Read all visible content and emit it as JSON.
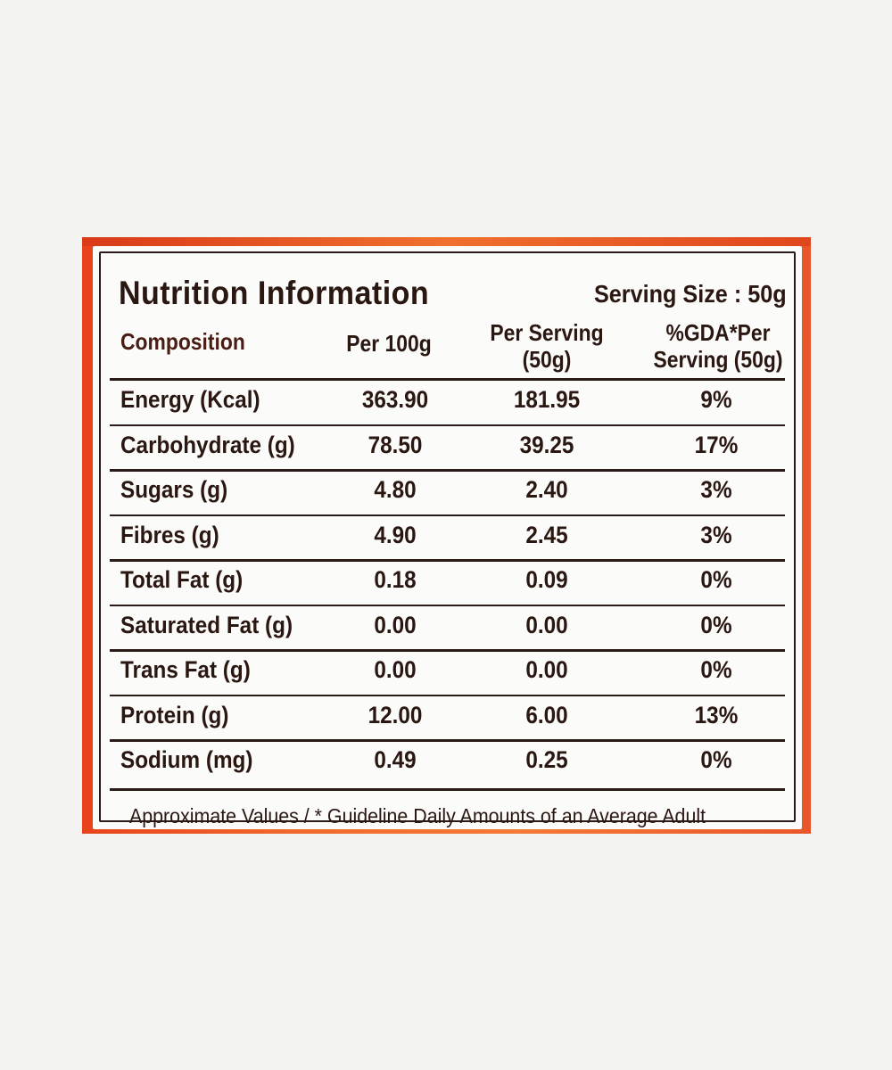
{
  "label": {
    "title": "Nutrition Information",
    "serving_size": "Serving Size : 50g",
    "headers": {
      "composition": "Composition",
      "per_100g": "Per 100g",
      "per_serving": [
        "Per Serving",
        "(50g)"
      ],
      "gda": [
        "%GDA*Per",
        "Serving (50g)"
      ]
    },
    "rows": [
      {
        "name": "Energy (Kcal)",
        "per_100g": "363.90",
        "per_serving": "181.95",
        "gda": "9%"
      },
      {
        "name": "Carbohydrate (g)",
        "per_100g": "78.50",
        "per_serving": "39.25",
        "gda": "17%"
      },
      {
        "name": "Sugars (g)",
        "per_100g": "4.80",
        "per_serving": "2.40",
        "gda": "3%"
      },
      {
        "name": "Fibres (g)",
        "per_100g": "4.90",
        "per_serving": "2.45",
        "gda": "3%"
      },
      {
        "name": "Total Fat (g)",
        "per_100g": "0.18",
        "per_serving": "0.09",
        "gda": "0%"
      },
      {
        "name": "Saturated Fat (g)",
        "per_100g": "0.00",
        "per_serving": "0.00",
        "gda": "0%"
      },
      {
        "name": "Trans Fat (g)",
        "per_100g": "0.00",
        "per_serving": "0.00",
        "gda": "0%"
      },
      {
        "name": "Protein (g)",
        "per_100g": "12.00",
        "per_serving": "6.00",
        "gda": "13%"
      },
      {
        "name": "Sodium (mg)",
        "per_100g": "0.49",
        "per_serving": "0.25",
        "gda": "0%"
      }
    ],
    "footnote": "Approximate Values / * Guideline Daily Amounts of an Average Adult"
  },
  "colors": {
    "background": "#f3f3f1",
    "package_orange": "#f06a2c",
    "label_paper": "#fbfbf9",
    "ink": "#2b1712"
  }
}
